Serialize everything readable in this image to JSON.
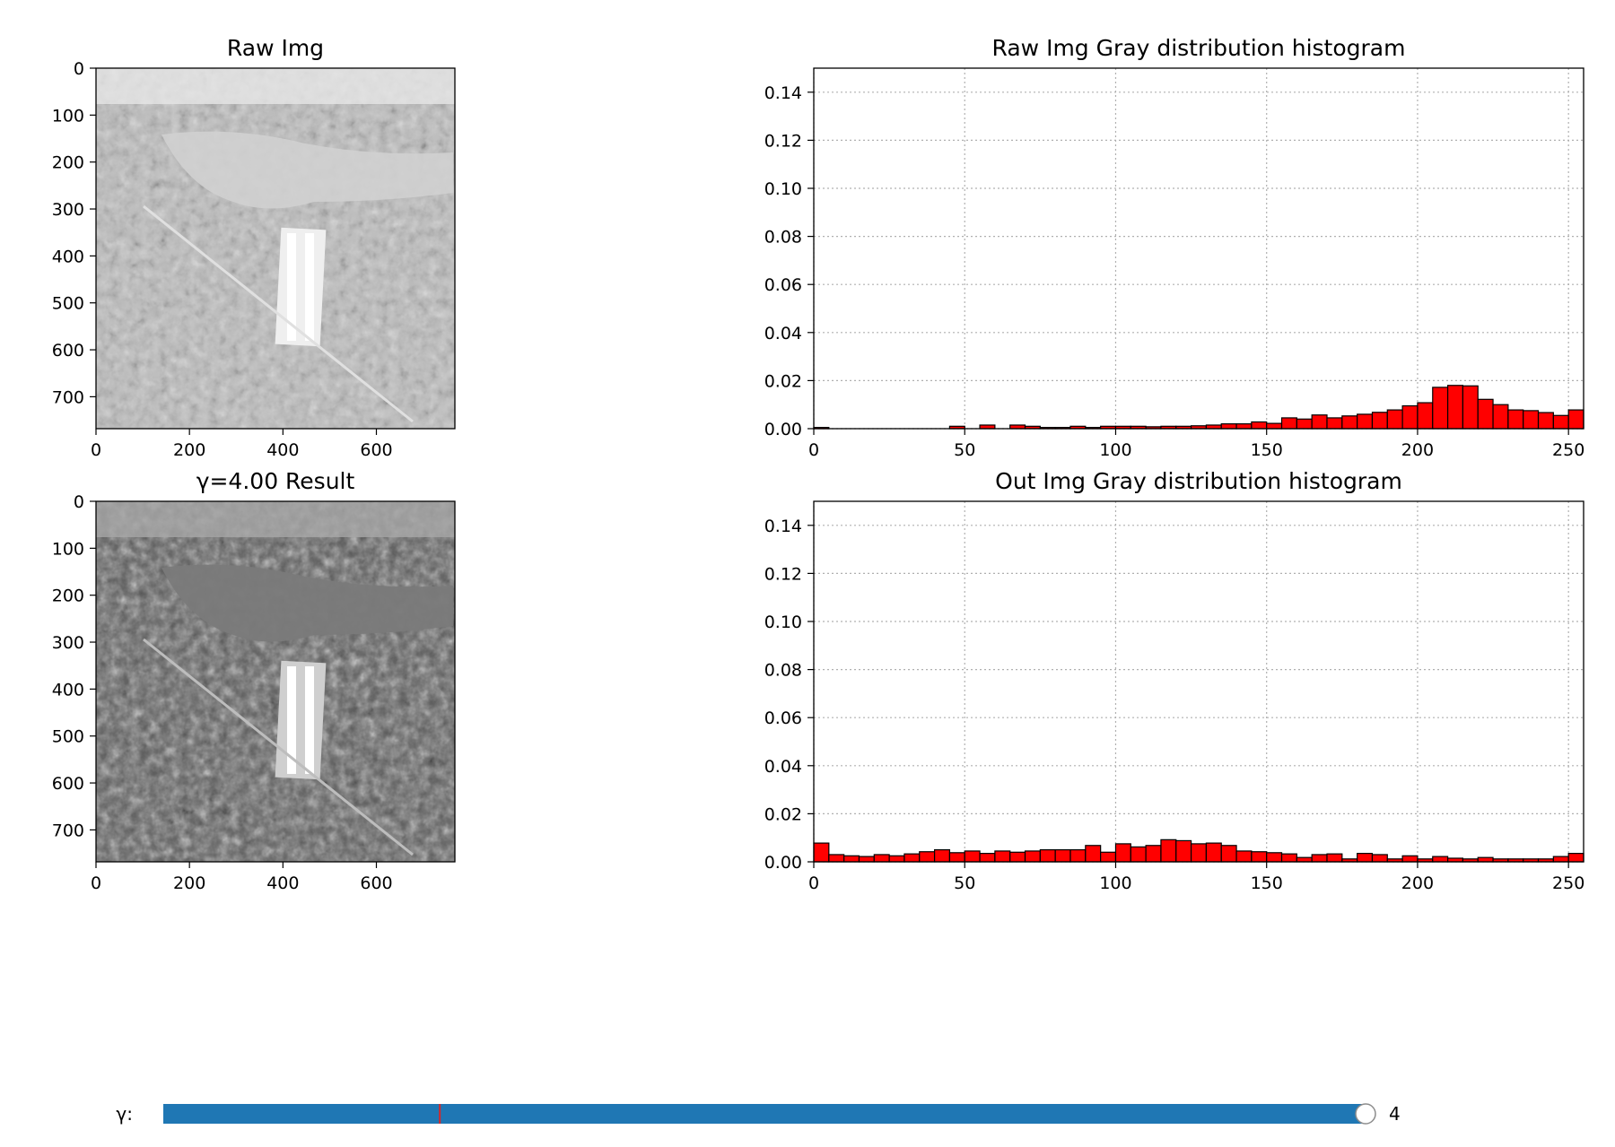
{
  "figure": {
    "background": "#ffffff"
  },
  "panels": {
    "raw_img_title": "Raw Img",
    "result_img_title": "γ=4.00 Result",
    "raw_hist_title": "Raw Img Gray distribution histogram",
    "out_hist_title": "Out Img Gray distribution histogram"
  },
  "image_axes": {
    "x_ticks": [
      "0",
      "200",
      "400",
      "600"
    ],
    "y_ticks": [
      "0",
      "100",
      "200",
      "300",
      "400",
      "500",
      "600",
      "700"
    ],
    "x_range": [
      0,
      768
    ],
    "y_range": [
      0,
      768
    ]
  },
  "hist_axes": {
    "x_ticks": [
      "0",
      "50",
      "100",
      "150",
      "200",
      "250"
    ],
    "y_ticks": [
      "0.00",
      "0.02",
      "0.04",
      "0.06",
      "0.08",
      "0.10",
      "0.12",
      "0.14"
    ]
  },
  "slider": {
    "label": "γ:",
    "value_text": "4",
    "value": 4,
    "fill_fraction": 1.0,
    "init_marker_fraction": 0.23,
    "track_color": "#1f77b4",
    "marker_color": "#d62728"
  },
  "chart_data": [
    {
      "type": "bar",
      "title": "Raw Img Gray distribution histogram",
      "xlim": [
        0,
        255
      ],
      "ylim": [
        0,
        0.15
      ],
      "grid": true,
      "bar_color": "#ff0000",
      "edge_color": "#000000",
      "bin_width": 5,
      "x": [
        0,
        5,
        10,
        15,
        20,
        25,
        30,
        35,
        40,
        45,
        50,
        55,
        60,
        65,
        70,
        75,
        80,
        85,
        90,
        95,
        100,
        105,
        110,
        115,
        120,
        125,
        130,
        135,
        140,
        145,
        150,
        155,
        160,
        165,
        170,
        175,
        180,
        185,
        190,
        195,
        200,
        205,
        210,
        215,
        220,
        225,
        230,
        235,
        240,
        245,
        250
      ],
      "values": [
        0.0005,
        0,
        0,
        0,
        0,
        0,
        0,
        0,
        0,
        0.001,
        0,
        0.0015,
        0,
        0.0015,
        0.001,
        0.0005,
        0.0005,
        0.001,
        0.0005,
        0.001,
        0.001,
        0.001,
        0.0008,
        0.001,
        0.001,
        0.0012,
        0.0015,
        0.002,
        0.002,
        0.0028,
        0.0022,
        0.0045,
        0.004,
        0.0057,
        0.0045,
        0.0053,
        0.006,
        0.0068,
        0.0078,
        0.0095,
        0.0108,
        0.0172,
        0.018,
        0.0178,
        0.0122,
        0.01,
        0.0078,
        0.0075,
        0.0067,
        0.0055,
        0.0078
      ]
    },
    {
      "type": "bar",
      "title": "Out Img Gray distribution histogram",
      "xlim": [
        0,
        255
      ],
      "ylim": [
        0,
        0.15
      ],
      "grid": true,
      "bar_color": "#ff0000",
      "edge_color": "#000000",
      "bin_width": 5,
      "x": [
        0,
        5,
        10,
        15,
        20,
        25,
        30,
        35,
        40,
        45,
        50,
        55,
        60,
        65,
        70,
        75,
        80,
        85,
        90,
        95,
        100,
        105,
        110,
        115,
        120,
        125,
        130,
        135,
        140,
        145,
        150,
        155,
        160,
        165,
        170,
        175,
        180,
        185,
        190,
        195,
        200,
        205,
        210,
        215,
        220,
        225,
        230,
        235,
        240,
        245,
        250
      ],
      "values": [
        0.0078,
        0.003,
        0.0025,
        0.0022,
        0.003,
        0.0025,
        0.0033,
        0.0042,
        0.005,
        0.0038,
        0.0045,
        0.0035,
        0.0045,
        0.004,
        0.0045,
        0.005,
        0.005,
        0.005,
        0.0068,
        0.004,
        0.0075,
        0.0062,
        0.0068,
        0.0092,
        0.0088,
        0.0075,
        0.0078,
        0.0068,
        0.0045,
        0.0042,
        0.0038,
        0.0033,
        0.0018,
        0.003,
        0.0033,
        0.0012,
        0.0035,
        0.003,
        0.0012,
        0.0025,
        0.0012,
        0.0022,
        0.0015,
        0.0012,
        0.0018,
        0.0012,
        0.0012,
        0.0012,
        0.0012,
        0.0022,
        0.0035
      ]
    }
  ]
}
